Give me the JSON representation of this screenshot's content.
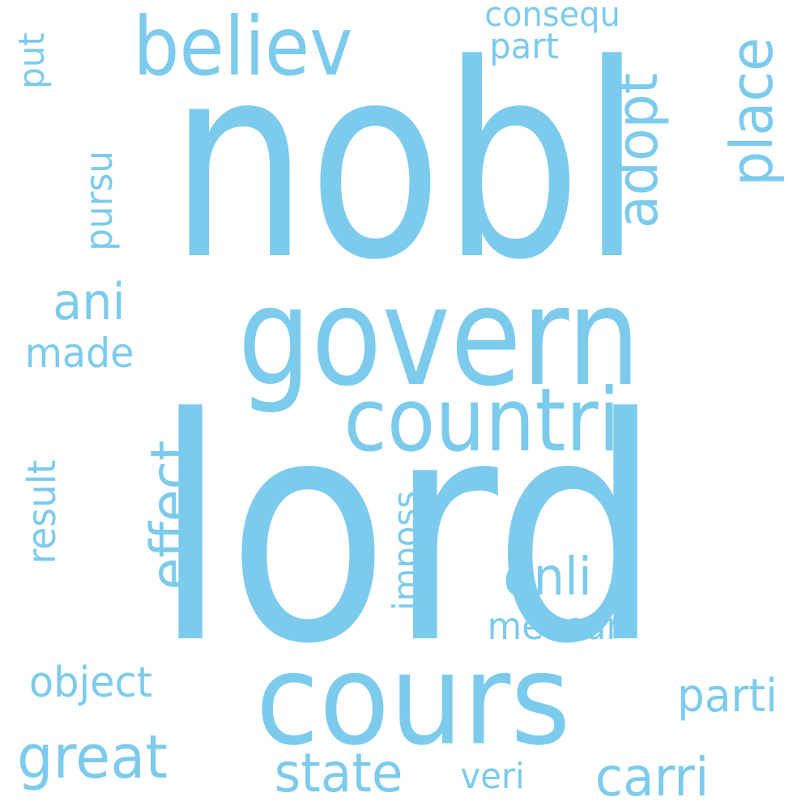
{
  "color": "#7ccbec",
  "background": "#ffffff",
  "words": [
    {
      "text": "nobl"
    },
    {
      "text": "lord"
    },
    {
      "text": "govern"
    },
    {
      "text": "cours"
    },
    {
      "text": "believ"
    },
    {
      "text": "countri"
    },
    {
      "text": "place"
    },
    {
      "text": "adopt"
    },
    {
      "text": "great"
    },
    {
      "text": "effect"
    },
    {
      "text": "state"
    },
    {
      "text": "carri"
    },
    {
      "text": "object"
    },
    {
      "text": "onli"
    },
    {
      "text": "parti"
    },
    {
      "text": "ani"
    },
    {
      "text": "made"
    },
    {
      "text": "result"
    },
    {
      "text": "imposs"
    },
    {
      "text": "measur"
    },
    {
      "text": "pursu"
    },
    {
      "text": "consequ"
    },
    {
      "text": "part"
    },
    {
      "text": "put"
    },
    {
      "text": "veri"
    }
  ]
}
